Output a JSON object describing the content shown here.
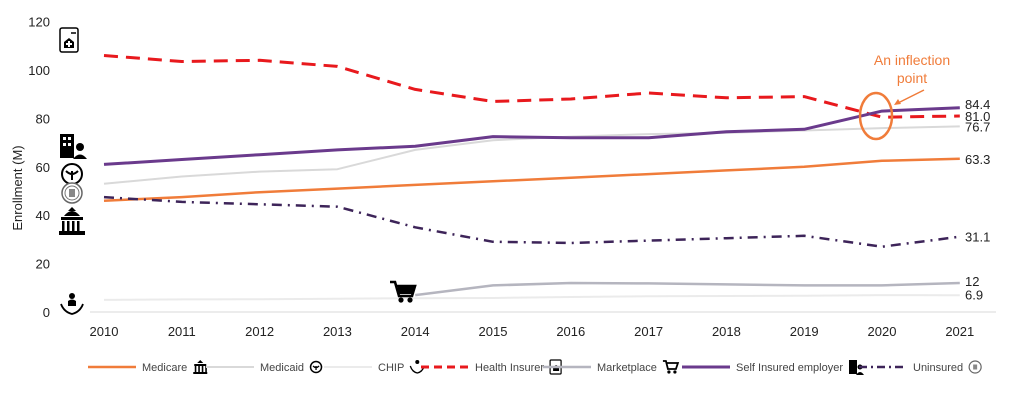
{
  "chart_data": {
    "type": "line",
    "ylabel": "Enrollment (M)",
    "xlabel": "",
    "ylim": [
      0,
      120
    ],
    "y_ticks": [
      "0",
      "20",
      "40",
      "60",
      "80",
      "100",
      "120"
    ],
    "categories": [
      "2010",
      "2011",
      "2012",
      "2013",
      "2014",
      "2015",
      "2016",
      "2017",
      "2018",
      "2019",
      "2020",
      "2021"
    ],
    "grid": false,
    "legend_position": "bottom",
    "annotation": {
      "lines": [
        "An inflection",
        "point"
      ],
      "year": "2020"
    },
    "series": [
      {
        "name": "Medicare",
        "icon": "capitol-building-icon",
        "color": "#f07c3a",
        "dash": "solid",
        "width": 2.5,
        "values": [
          46.0,
          47.5,
          49.5,
          51.0,
          52.5,
          54.0,
          55.5,
          57.0,
          58.5,
          60.0,
          62.5,
          63.3
        ],
        "end_label": "63.3"
      },
      {
        "name": "Medicaid",
        "icon": "caduceus-icon",
        "color": "#d9d9d9",
        "dash": "solid",
        "width": 2,
        "values": [
          53.0,
          56.0,
          58.0,
          59.0,
          67.0,
          71.0,
          72.5,
          73.5,
          74.0,
          75.0,
          76.0,
          76.7
        ],
        "end_label": "76.7"
      },
      {
        "name": "CHIP",
        "icon": "family-care-icon",
        "color": "#ebebeb",
        "dash": "solid",
        "width": 2,
        "values": [
          5.0,
          5.2,
          5.3,
          5.5,
          5.7,
          5.8,
          6.2,
          6.5,
          6.6,
          6.7,
          7.0,
          6.9
        ],
        "end_label": "6.9"
      },
      {
        "name": "Health Insurer",
        "icon": "insurance-doc-icon",
        "color": "#e8191d",
        "dash": "dashed",
        "width": 3,
        "values": [
          106.0,
          103.5,
          104.0,
          101.5,
          92.0,
          87.0,
          88.0,
          90.5,
          88.5,
          89.0,
          80.5,
          81.0
        ],
        "end_label": "81.0"
      },
      {
        "name": "Marketplace",
        "icon": "cart-icon",
        "color": "#b5b5bf",
        "dash": "solid",
        "width": 2.5,
        "start_index": 4,
        "values": [
          null,
          null,
          null,
          null,
          7.0,
          11.0,
          12.0,
          11.8,
          11.4,
          11.0,
          11.0,
          12.0
        ],
        "end_label": "12"
      },
      {
        "name": "Self Insured employer",
        "icon": "employer-building-icon",
        "color": "#6a3a8c",
        "dash": "solid",
        "width": 3,
        "values": [
          61.0,
          63.0,
          65.0,
          67.0,
          68.5,
          72.5,
          72.0,
          72.0,
          74.5,
          75.5,
          83.0,
          84.4
        ],
        "end_label": "84.4"
      },
      {
        "name": "Uninsured",
        "icon": "uninsured-seal-icon",
        "color": "#3d2459",
        "dash": "dashdot",
        "width": 2.5,
        "values": [
          47.5,
          45.5,
          44.5,
          43.5,
          35.0,
          29.0,
          28.5,
          29.5,
          30.5,
          31.5,
          27.0,
          31.1
        ],
        "end_label": "31.1"
      }
    ]
  }
}
